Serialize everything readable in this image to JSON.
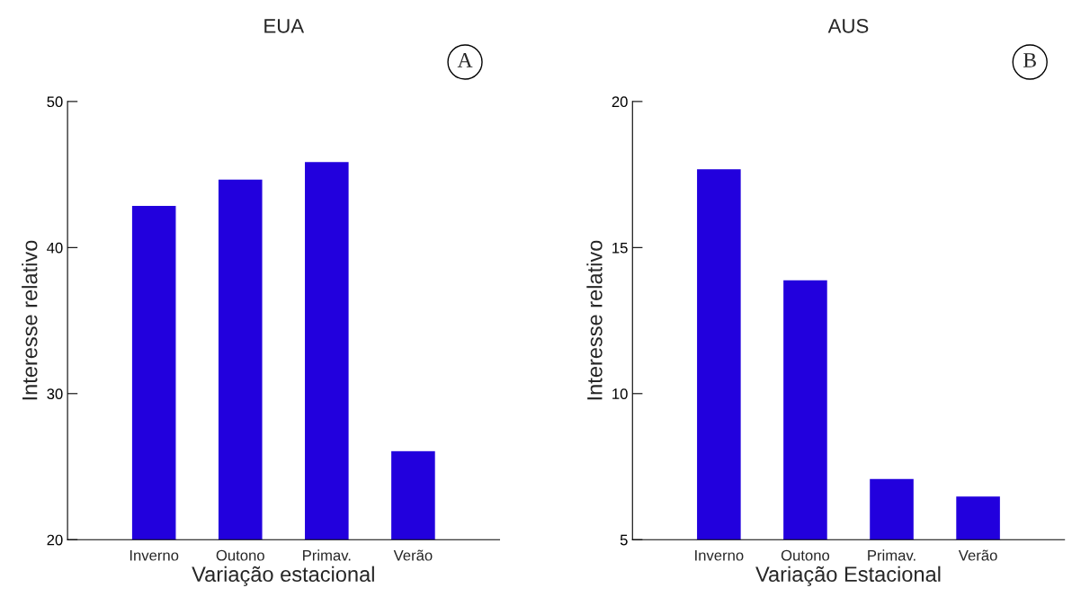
{
  "chart_data": [
    {
      "type": "bar",
      "title": "EUA",
      "xlabel": "Variação estacional",
      "ylabel": "Interesse relativo",
      "categories": [
        "Inverno",
        "Outono",
        "Primav.",
        "Verão"
      ],
      "values": [
        42.9,
        44.7,
        45.9,
        26.1
      ],
      "color": "#2200dd",
      "ylim": [
        20,
        50
      ],
      "yticks": [
        20,
        30,
        40,
        50
      ],
      "grid": false,
      "annotations": [
        "A"
      ]
    },
    {
      "type": "bar",
      "title": "AUS",
      "xlabel": "Variação Estacional",
      "ylabel": "Interesse relativo",
      "categories": [
        "Inverno",
        "Outono",
        "Primav.",
        "Verão"
      ],
      "values": [
        17.7,
        13.9,
        7.1,
        6.5
      ],
      "color": "#2200dd",
      "ylim": [
        5,
        20
      ],
      "yticks": [
        5,
        10,
        15,
        20
      ],
      "grid": false,
      "annotations": [
        "B"
      ]
    }
  ]
}
